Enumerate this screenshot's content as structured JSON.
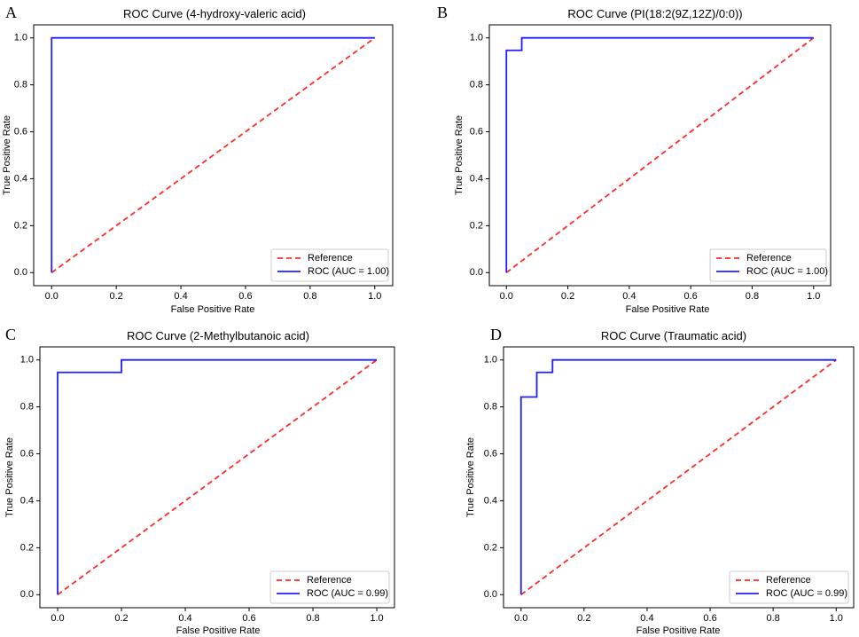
{
  "chart_data": [
    {
      "type": "line",
      "panel": "A",
      "title": "ROC Curve (4-hydroxy-valeric acid)",
      "xlabel": "False Positive Rate",
      "ylabel": "True Positive Rate",
      "xlim": [
        0,
        1
      ],
      "ylim": [
        0,
        1
      ],
      "xticks": [
        "0.0",
        "0.2",
        "0.4",
        "0.6",
        "0.8",
        "1.0"
      ],
      "yticks": [
        "0.0",
        "0.2",
        "0.4",
        "0.6",
        "0.8",
        "1.0"
      ],
      "legend_position": "bottom-right",
      "series": [
        {
          "name": "Reference",
          "color": "#ff2a2a",
          "style": "dashed",
          "x": [
            0,
            1
          ],
          "y": [
            0,
            1
          ]
        },
        {
          "name": "ROC (AUC = 1.00)",
          "color": "#1f1fff",
          "style": "solid",
          "x": [
            0,
            0,
            1
          ],
          "y": [
            0,
            1,
            1
          ]
        }
      ]
    },
    {
      "type": "line",
      "panel": "B",
      "title": "ROC Curve (PI(18:2(9Z,12Z)/0:0))",
      "xlabel": "False Positive Rate",
      "ylabel": "True Positive Rate",
      "xlim": [
        0,
        1
      ],
      "ylim": [
        0,
        1
      ],
      "xticks": [
        "0.0",
        "0.2",
        "0.4",
        "0.6",
        "0.8",
        "1.0"
      ],
      "yticks": [
        "0.0",
        "0.2",
        "0.4",
        "0.6",
        "0.8",
        "1.0"
      ],
      "legend_position": "bottom-right",
      "series": [
        {
          "name": "Reference",
          "color": "#ff2a2a",
          "style": "dashed",
          "x": [
            0,
            1
          ],
          "y": [
            0,
            1
          ]
        },
        {
          "name": "ROC (AUC = 1.00)",
          "color": "#1f1fff",
          "style": "solid",
          "x": [
            0,
            0,
            0.05,
            0.05,
            1
          ],
          "y": [
            0,
            0.947,
            0.947,
            1,
            1
          ]
        }
      ]
    },
    {
      "type": "line",
      "panel": "C",
      "title": "ROC Curve (2-Methylbutanoic acid)",
      "xlabel": "False Positive Rate",
      "ylabel": "True Positive Rate",
      "xlim": [
        0,
        1
      ],
      "ylim": [
        0,
        1
      ],
      "xticks": [
        "0.0",
        "0.2",
        "0.4",
        "0.6",
        "0.8",
        "1.0"
      ],
      "yticks": [
        "0.0",
        "0.2",
        "0.4",
        "0.6",
        "0.8",
        "1.0"
      ],
      "legend_position": "bottom-right",
      "series": [
        {
          "name": "Reference",
          "color": "#ff2a2a",
          "style": "dashed",
          "x": [
            0,
            1
          ],
          "y": [
            0,
            1
          ]
        },
        {
          "name": "ROC (AUC = 0.99)",
          "color": "#1f1fff",
          "style": "solid",
          "x": [
            0,
            0,
            0.2,
            0.2,
            1
          ],
          "y": [
            0,
            0.947,
            0.947,
            1,
            1
          ]
        }
      ]
    },
    {
      "type": "line",
      "panel": "D",
      "title": "ROC Curve (Traumatic acid)",
      "xlabel": "False Positive Rate",
      "ylabel": "True Positive Rate",
      "xlim": [
        0,
        1
      ],
      "ylim": [
        0,
        1
      ],
      "xticks": [
        "0.0",
        "0.2",
        "0.4",
        "0.6",
        "0.8",
        "1.0"
      ],
      "yticks": [
        "0.0",
        "0.2",
        "0.4",
        "0.6",
        "0.8",
        "1.0"
      ],
      "legend_position": "bottom-right",
      "series": [
        {
          "name": "Reference",
          "color": "#ff2a2a",
          "style": "dashed",
          "x": [
            0,
            1
          ],
          "y": [
            0,
            1
          ]
        },
        {
          "name": "ROC (AUC = 0.99)",
          "color": "#1f1fff",
          "style": "solid",
          "x": [
            0,
            0,
            0.05,
            0.05,
            0.1,
            0.1,
            1
          ],
          "y": [
            0,
            0.842,
            0.842,
            0.947,
            0.947,
            1,
            1
          ]
        }
      ]
    }
  ]
}
